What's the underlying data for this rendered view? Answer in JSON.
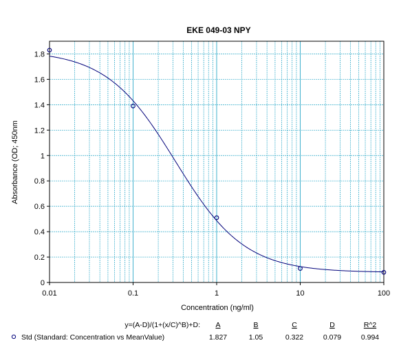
{
  "chart_data": {
    "type": "scatter",
    "title": "EKE 049-03 NPY",
    "xlabel": "Concentration (ng/ml)",
    "ylabel": "Absorbance (OD; 450nm",
    "x_scale": "log",
    "xlim": [
      0.01,
      100
    ],
    "ylim": [
      0,
      1.9
    ],
    "x_ticks": [
      "0.01",
      "0.1",
      "1",
      "10",
      "100"
    ],
    "y_ticks": [
      "0",
      "0.2",
      "0.4",
      "0.6",
      "0.8",
      "1",
      "1.2",
      "1.4",
      "1.6",
      "1.8"
    ],
    "grid": true,
    "series": [
      {
        "name": "Std (Standard: Concentration vs MeanValue)",
        "x": [
          0.01,
          0.1,
          1,
          10,
          100
        ],
        "y": [
          1.83,
          1.39,
          0.51,
          0.11,
          0.08
        ]
      }
    ],
    "fit": {
      "equation": "y=(A-D)/(1+(x/C)^B)+D:",
      "param_names": [
        "A",
        "B",
        "C",
        "D",
        "R^2"
      ],
      "param_values": [
        "1.827",
        "1.05",
        "0.322",
        "0.079",
        "0.994"
      ],
      "A": 1.827,
      "B": 1.05,
      "C": 0.322,
      "D": 0.079
    },
    "colors": {
      "curve": "#00007a",
      "grid": "#2aa8c8",
      "points": "#00007a"
    }
  }
}
